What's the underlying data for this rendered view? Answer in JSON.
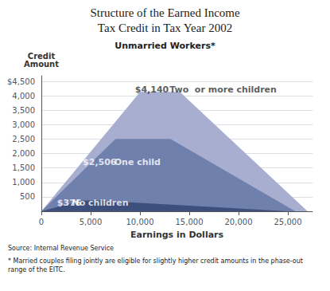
{
  "chart_data": {
    "type": "area",
    "title": "Structure of the Earned Income\nTax Credit in Tax Year 2002",
    "subtitle": "Unmarried Workers*",
    "xlabel": "Earnings in Dollars",
    "ylabel": "Credit\nAmount",
    "source": "Source: Internal Revenue Service",
    "footnote": "* Married couples filing jointly are eligible for slightly higher credit amounts in the phase-out range of the EITC.",
    "xlim": [
      0,
      27500
    ],
    "ylim": [
      0,
      4700
    ],
    "xticks": [
      0,
      {
        "value": 5000,
        "label": "5,000"
      },
      {
        "value": 10000,
        "label": "10,000"
      },
      {
        "value": 15000,
        "label": "15,000"
      },
      {
        "value": 20000,
        "label": "20,000"
      },
      {
        "value": 25000,
        "label": "25,000"
      }
    ],
    "yticks": [
      {
        "value": 0,
        "label": ""
      },
      500,
      {
        "value": 1000,
        "label": "1,000"
      },
      {
        "value": 1500,
        "label": "1,500"
      },
      {
        "value": 2000,
        "label": "2,000"
      },
      {
        "value": 2500,
        "label": "2,500"
      },
      {
        "value": 3000,
        "label": "3,000"
      },
      {
        "value": 3500,
        "label": "3,500"
      },
      {
        "value": 4000,
        "label": "4,000"
      },
      {
        "value": 4500,
        "label": "$4,500"
      }
    ],
    "grid": true,
    "series": [
      {
        "color": "#a8aecf",
        "x": [
          0,
          10020,
          14040,
          27000
        ],
        "values": [
          0,
          4140,
          4140,
          0
        ]
      },
      {
        "color": "#7080ad",
        "x": [
          0,
          7520,
          13090,
          25750
        ],
        "values": [
          0,
          2506,
          2506,
          0
        ]
      },
      {
        "color": "#3d4f7c",
        "x": [
          0,
          4140,
          5770,
          25000
        ],
        "values": [
          0,
          376,
          376,
          0
        ]
      }
    ],
    "annotations": [
      {
        "text": "$376",
        "x": 1600,
        "y": 300,
        "color": "#ffffff"
      },
      {
        "text": "No children",
        "x": 3100,
        "y": 300,
        "color": "#ffffff"
      },
      {
        "text": "$2,506",
        "x": 4200,
        "y": 1700,
        "color": "#ffffff"
      },
      {
        "text": "One child",
        "x": 7400,
        "y": 1700,
        "color": "#ffffff"
      },
      {
        "text": "$4,140",
        "x": 9500,
        "y": 4220,
        "color": "#333333"
      },
      {
        "text": "Two  or more children",
        "x": 13000,
        "y": 4220,
        "color": "#333333"
      }
    ]
  }
}
